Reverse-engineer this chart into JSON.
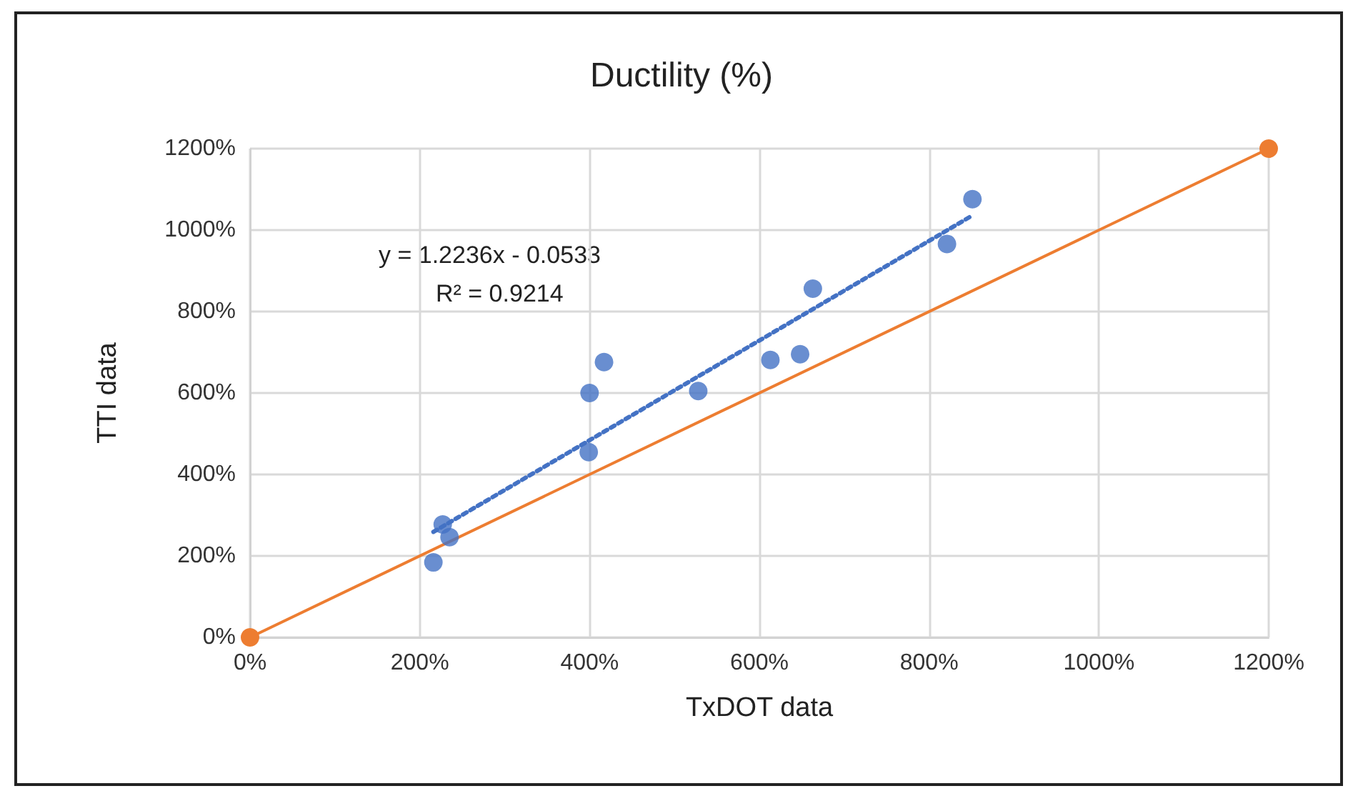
{
  "chart_data": {
    "type": "scatter",
    "title": "Ductility (%)",
    "xlabel": "TxDOT data",
    "ylabel": "TTI data",
    "annotations": [
      "y = 1.2236x - 0.0533",
      "R² = 0.9214"
    ],
    "series": [
      {
        "color": "#4472c4",
        "marker": "circle",
        "x": [
          216,
          227,
          235,
          399,
          400,
          417,
          528,
          613,
          648,
          663,
          821,
          851
        ],
        "values": [
          184,
          277,
          246,
          455,
          600,
          676,
          605,
          681,
          695,
          856,
          966,
          1076
        ]
      },
      {
        "type": "line",
        "color": "#4472c4",
        "marker": "none",
        "line_style": "dotted",
        "x": [
          216,
          851
        ],
        "values": [
          259,
          1036
        ]
      },
      {
        "type": "line",
        "color": "#ed7d31",
        "marker": "circle",
        "line_style": "solid",
        "x": [
          0,
          1200
        ],
        "values": [
          0,
          1200
        ]
      }
    ],
    "xlim": [
      0,
      1200
    ],
    "ylim": [
      0,
      1200
    ],
    "xticks": [
      {
        "value": 0,
        "label": "0%"
      },
      {
        "value": 200,
        "label": "200%"
      },
      {
        "value": 400,
        "label": "400%"
      },
      {
        "value": 600,
        "label": "600%"
      },
      {
        "value": 800,
        "label": "800%"
      },
      {
        "value": 1000,
        "label": "1000%"
      },
      {
        "value": 1200,
        "label": "1200%"
      }
    ],
    "yticks": [
      {
        "value": 0,
        "label": "0%"
      },
      {
        "value": 200,
        "label": "200%"
      },
      {
        "value": 400,
        "label": "400%"
      },
      {
        "value": 600,
        "label": "600%"
      },
      {
        "value": 800,
        "label": "800%"
      },
      {
        "value": 1000,
        "label": "1000%"
      },
      {
        "value": 1200,
        "label": "1200%"
      }
    ],
    "grid": true
  }
}
